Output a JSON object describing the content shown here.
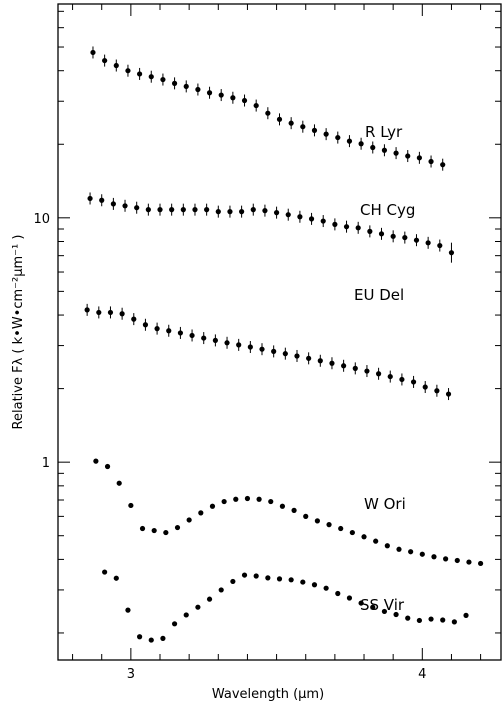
{
  "chart_data": {
    "type": "scatter",
    "xlabel": "Wavelength (μm)",
    "ylabel": "Relative Fλ ( k•W•cm⁻²μm⁻¹ )",
    "xlim": [
      2.75,
      4.27
    ],
    "ylim": [
      0.155,
      75
    ],
    "yscale": "log",
    "x_ticks": [
      3,
      4
    ],
    "y_ticks": [
      1,
      10
    ],
    "grid": false,
    "series": [
      {
        "name": "R Lyr",
        "x": [
          2.87,
          2.91,
          2.95,
          2.99,
          3.03,
          3.07,
          3.11,
          3.15,
          3.19,
          3.23,
          3.27,
          3.31,
          3.35,
          3.39,
          3.43,
          3.47,
          3.51,
          3.55,
          3.59,
          3.63,
          3.67,
          3.71,
          3.75,
          3.79,
          3.83,
          3.87,
          3.91,
          3.95,
          3.99,
          4.03,
          4.07
        ],
        "y": [
          47.5,
          44.0,
          42.0,
          40.0,
          38.8,
          37.8,
          36.8,
          35.5,
          34.5,
          33.5,
          32.5,
          31.8,
          31.0,
          30.2,
          28.8,
          26.8,
          25.3,
          24.4,
          23.6,
          22.8,
          22.0,
          21.3,
          20.6,
          20.1,
          19.4,
          18.9,
          18.4,
          17.9,
          17.6,
          17.0,
          16.5
        ],
        "error_bars": true
      },
      {
        "name": "CH Cyg",
        "x": [
          2.86,
          2.9,
          2.94,
          2.98,
          3.02,
          3.06,
          3.1,
          3.14,
          3.18,
          3.22,
          3.26,
          3.3,
          3.34,
          3.38,
          3.42,
          3.46,
          3.5,
          3.54,
          3.58,
          3.62,
          3.66,
          3.7,
          3.74,
          3.78,
          3.82,
          3.86,
          3.9,
          3.94,
          3.98,
          4.02,
          4.06,
          4.1
        ],
        "y": [
          12.0,
          11.8,
          11.4,
          11.2,
          11.0,
          10.8,
          10.8,
          10.8,
          10.8,
          10.8,
          10.8,
          10.6,
          10.6,
          10.6,
          10.8,
          10.7,
          10.5,
          10.3,
          10.1,
          9.9,
          9.7,
          9.4,
          9.2,
          9.1,
          8.8,
          8.6,
          8.4,
          8.3,
          8.1,
          7.9,
          7.7,
          7.2
        ],
        "error_bars": true
      },
      {
        "name": "EU Del",
        "x": [
          2.85,
          2.89,
          2.93,
          2.97,
          3.01,
          3.05,
          3.09,
          3.13,
          3.17,
          3.21,
          3.25,
          3.29,
          3.33,
          3.37,
          3.41,
          3.45,
          3.49,
          3.53,
          3.57,
          3.61,
          3.65,
          3.69,
          3.73,
          3.77,
          3.81,
          3.85,
          3.89,
          3.93,
          3.97,
          4.01,
          4.05,
          4.09
        ],
        "y": [
          4.2,
          4.1,
          4.1,
          4.05,
          3.85,
          3.65,
          3.52,
          3.45,
          3.38,
          3.3,
          3.22,
          3.15,
          3.08,
          3.02,
          2.96,
          2.9,
          2.84,
          2.78,
          2.72,
          2.66,
          2.6,
          2.54,
          2.48,
          2.42,
          2.36,
          2.3,
          2.24,
          2.18,
          2.13,
          2.03,
          1.96,
          1.9
        ],
        "error_bars": true
      },
      {
        "name": "W Ori",
        "x": [
          2.88,
          2.92,
          2.96,
          3.0,
          3.04,
          3.08,
          3.12,
          3.16,
          3.2,
          3.24,
          3.28,
          3.32,
          3.36,
          3.4,
          3.44,
          3.48,
          3.52,
          3.56,
          3.6,
          3.64,
          3.68,
          3.72,
          3.76,
          3.8,
          3.84,
          3.88,
          3.92,
          3.96,
          4.0,
          4.04,
          4.08,
          4.12,
          4.16,
          4.2
        ],
        "y": [
          1.01,
          0.96,
          0.82,
          0.665,
          0.535,
          0.525,
          0.515,
          0.54,
          0.58,
          0.62,
          0.66,
          0.69,
          0.705,
          0.71,
          0.705,
          0.69,
          0.66,
          0.635,
          0.6,
          0.575,
          0.555,
          0.535,
          0.515,
          0.495,
          0.475,
          0.455,
          0.44,
          0.43,
          0.42,
          0.41,
          0.402,
          0.396,
          0.39,
          0.385
        ],
        "error_bars": false
      },
      {
        "name": "SS Vir",
        "x": [
          2.91,
          2.95,
          2.99,
          3.03,
          3.07,
          3.11,
          3.15,
          3.19,
          3.23,
          3.27,
          3.31,
          3.35,
          3.39,
          3.43,
          3.47,
          3.51,
          3.55,
          3.59,
          3.63,
          3.67,
          3.71,
          3.75,
          3.79,
          3.83,
          3.87,
          3.91,
          3.95,
          3.99,
          4.03,
          4.07,
          4.11,
          4.15
        ],
        "y": [
          0.355,
          0.335,
          0.248,
          0.193,
          0.187,
          0.19,
          0.218,
          0.237,
          0.255,
          0.275,
          0.3,
          0.325,
          0.345,
          0.342,
          0.336,
          0.333,
          0.33,
          0.323,
          0.315,
          0.305,
          0.29,
          0.278,
          0.265,
          0.255,
          0.245,
          0.238,
          0.23,
          0.225,
          0.228,
          0.226,
          0.222,
          0.236
        ],
        "error_bars": false
      }
    ]
  }
}
